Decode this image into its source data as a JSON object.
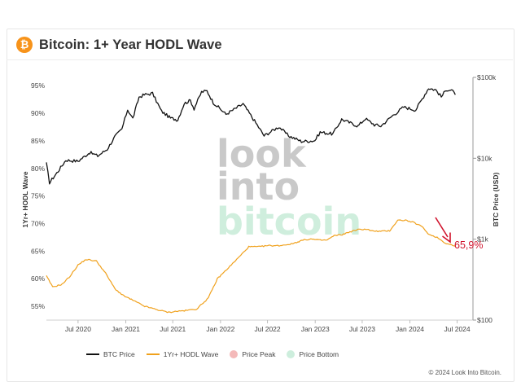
{
  "header": {
    "icon": "bitcoin-icon",
    "symbol": "₿",
    "title": "Bitcoin: 1+ Year HODL Wave"
  },
  "watermark": [
    "look",
    "into",
    "bitcoin"
  ],
  "colors": {
    "btc": "#111111",
    "hodl": "#f0a11c",
    "peak": "#f4b9b9",
    "bottom": "#cdeedd",
    "annotation": "#d0122b",
    "brand": "#f7931a"
  },
  "legend": [
    {
      "label": "BTC Price",
      "color": "#111111",
      "kind": "line"
    },
    {
      "label": "1Yr+ HODL Wave",
      "color": "#f0a11c",
      "kind": "line"
    },
    {
      "label": "Price Peak",
      "color": "#f4b9b9",
      "kind": "dot"
    },
    {
      "label": "Price Bottom",
      "color": "#cdeedd",
      "kind": "dot"
    }
  ],
  "annotation": {
    "text": "65,9%"
  },
  "copyright": "© 2024 Look Into Bitcoin.",
  "chart_data": {
    "type": "line",
    "title": "Bitcoin: 1+ Year HODL Wave",
    "ylabel_left": "1Yr+ HODL Wave",
    "ylabel_right": "BTC Price (USD)",
    "x_ticks": [
      "Jul 2020",
      "Jan 2021",
      "Jul 2021",
      "Jan 2022",
      "Jul 2022",
      "Jan 2023",
      "Jul 2023",
      "Jan 2024",
      "Jul 2024"
    ],
    "y_left_ticks": [
      "55%",
      "60%",
      "65%",
      "70%",
      "75%",
      "80%",
      "85%",
      "90%",
      "95%"
    ],
    "y_left_range": [
      52.5,
      96.5
    ],
    "y_right_ticks": [
      "$100",
      "$1k",
      "$10k",
      "$100k"
    ],
    "y_right_scale": "log",
    "y_right_range": [
      100,
      100000
    ],
    "x_range": [
      "2020-03-01",
      "2024-08-31"
    ],
    "legend_position": "bottom",
    "series": [
      {
        "name": "BTC Price",
        "axis": "right",
        "points": [
          [
            "2020-03-01",
            8600
          ],
          [
            "2020-03-13",
            5000
          ],
          [
            "2020-04-15",
            6900
          ],
          [
            "2020-05-15",
            9500
          ],
          [
            "2020-07-01",
            9200
          ],
          [
            "2020-08-15",
            11800
          ],
          [
            "2020-09-15",
            10700
          ],
          [
            "2020-10-21",
            12900
          ],
          [
            "2020-11-20",
            18500
          ],
          [
            "2020-12-17",
            23000
          ],
          [
            "2021-01-08",
            40000
          ],
          [
            "2021-01-28",
            31000
          ],
          [
            "2021-02-21",
            57000
          ],
          [
            "2021-03-13",
            61000
          ],
          [
            "2021-04-14",
            63500
          ],
          [
            "2021-05-19",
            38000
          ],
          [
            "2021-06-22",
            31500
          ],
          [
            "2021-07-20",
            29800
          ],
          [
            "2021-08-14",
            47500
          ],
          [
            "2021-09-07",
            52000
          ],
          [
            "2021-09-21",
            41000
          ],
          [
            "2021-10-20",
            66000
          ],
          [
            "2021-11-10",
            68000
          ],
          [
            "2021-12-04",
            49000
          ],
          [
            "2022-01-22",
            35000
          ],
          [
            "2022-03-29",
            47000
          ],
          [
            "2022-05-12",
            29000
          ],
          [
            "2022-06-18",
            19000
          ],
          [
            "2022-08-14",
            24500
          ],
          [
            "2022-09-20",
            19000
          ],
          [
            "2022-11-09",
            16200
          ],
          [
            "2022-12-30",
            16500
          ],
          [
            "2023-01-20",
            21000
          ],
          [
            "2023-03-10",
            20000
          ],
          [
            "2023-04-13",
            30300
          ],
          [
            "2023-06-15",
            25000
          ],
          [
            "2023-07-13",
            31000
          ],
          [
            "2023-08-17",
            26000
          ],
          [
            "2023-09-11",
            25000
          ],
          [
            "2023-10-23",
            33000
          ],
          [
            "2023-12-08",
            43000
          ],
          [
            "2024-01-23",
            39500
          ],
          [
            "2024-02-28",
            62000
          ],
          [
            "2024-03-13",
            73500
          ],
          [
            "2024-04-10",
            70000
          ],
          [
            "2024-05-01",
            57500
          ],
          [
            "2024-05-21",
            71000
          ],
          [
            "2024-06-10",
            69500
          ],
          [
            "2024-06-24",
            61000
          ]
        ]
      },
      {
        "name": "1Yr+ HODL Wave",
        "axis": "left",
        "points": [
          [
            "2020-03-01",
            60.5
          ],
          [
            "2020-03-25",
            58.5
          ],
          [
            "2020-05-01",
            59.0
          ],
          [
            "2020-06-01",
            60.5
          ],
          [
            "2020-07-01",
            62.5
          ],
          [
            "2020-08-01",
            63.5
          ],
          [
            "2020-09-10",
            63.2
          ],
          [
            "2020-10-15",
            61.0
          ],
          [
            "2020-11-20",
            58.2
          ],
          [
            "2020-12-20",
            57.0
          ],
          [
            "2021-02-01",
            56.0
          ],
          [
            "2021-03-15",
            55.0
          ],
          [
            "2021-05-01",
            54.4
          ],
          [
            "2021-06-15",
            53.9
          ],
          [
            "2021-07-15",
            54.1
          ],
          [
            "2021-08-15",
            54.2
          ],
          [
            "2021-10-01",
            54.5
          ],
          [
            "2021-11-15",
            56.5
          ],
          [
            "2021-12-20",
            60.0
          ],
          [
            "2022-02-01",
            62.0
          ],
          [
            "2022-03-15",
            64.0
          ],
          [
            "2022-04-20",
            65.8
          ],
          [
            "2022-06-01",
            65.8
          ],
          [
            "2022-07-01",
            66.0
          ],
          [
            "2022-08-15",
            66.0
          ],
          [
            "2022-10-01",
            66.3
          ],
          [
            "2022-11-15",
            67.0
          ],
          [
            "2022-12-15",
            67.2
          ],
          [
            "2023-01-15",
            67.0
          ],
          [
            "2023-02-15",
            67.0
          ],
          [
            "2023-03-15",
            67.8
          ],
          [
            "2023-04-15",
            68.0
          ],
          [
            "2023-05-15",
            68.5
          ],
          [
            "2023-06-15",
            68.9
          ],
          [
            "2023-07-15",
            69.0
          ],
          [
            "2023-08-15",
            68.6
          ],
          [
            "2023-09-15",
            68.6
          ],
          [
            "2023-10-15",
            68.7
          ],
          [
            "2023-11-15",
            70.6
          ],
          [
            "2023-12-15",
            70.6
          ],
          [
            "2024-01-15",
            70.2
          ],
          [
            "2024-02-15",
            69.5
          ],
          [
            "2024-03-15",
            68.0
          ],
          [
            "2024-04-15",
            67.5
          ],
          [
            "2024-05-15",
            66.5
          ],
          [
            "2024-06-24",
            65.9
          ]
        ]
      }
    ]
  }
}
